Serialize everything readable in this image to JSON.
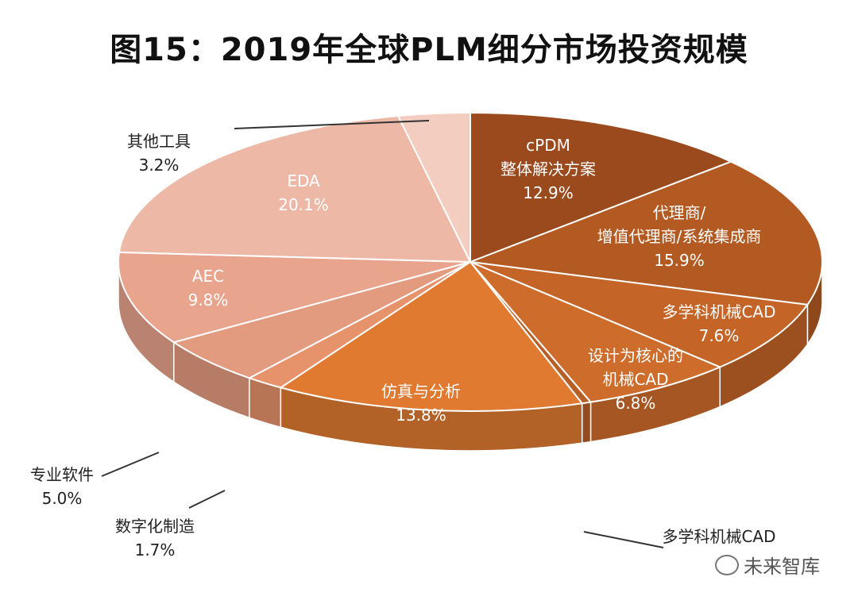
{
  "title": "图15：2019年全球PLM细分市场投资规模",
  "watermark": "未来智库",
  "chart_data": {
    "type": "pie",
    "title": "图15：2019年全球PLM细分市场投资规模",
    "unit": "%",
    "slices": [
      {
        "name": "cPDM\n整体解决方案",
        "value": 12.9,
        "label": "12.9%",
        "color": "#9A4A1D"
      },
      {
        "name": "代理商/\n增值代理商/系统集成商",
        "value": 15.9,
        "label": "15.9%",
        "color": "#B25A22"
      },
      {
        "name": "多学科机械CAD",
        "value": 7.6,
        "label": "7.6%",
        "color": "#C46427"
      },
      {
        "name": "设计为核心的\n机械CAD",
        "value": 6.8,
        "label": "6.8%",
        "color": "#CE6C2B"
      },
      {
        "name": "多学科机械CAD",
        "value": 0.4,
        "label": "",
        "color": "#B85E27"
      },
      {
        "name": "仿真与分析",
        "value": 13.8,
        "label": "13.8%",
        "color": "#E07A31"
      },
      {
        "name": "数字化制造",
        "value": 1.7,
        "label": "1.7%",
        "color": "#E6926B"
      },
      {
        "name": "专业软件",
        "value": 5.0,
        "label": "5.0%",
        "color": "#E39B7F"
      },
      {
        "name": "AEC",
        "value": 9.8,
        "label": "9.8%",
        "color": "#E8A48D"
      },
      {
        "name": "EDA",
        "value": 20.1,
        "label": "20.1%",
        "color": "#EDB9A6"
      },
      {
        "name": "其他工具",
        "value": 3.2,
        "label": "3.2%",
        "color": "#F3CDBF"
      }
    ]
  }
}
